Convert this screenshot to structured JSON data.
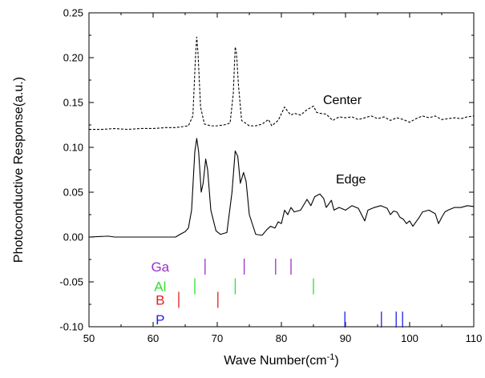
{
  "chart_data": {
    "type": "line",
    "xlabel": "Wave Number(cm",
    "xlabel_sup": "-1",
    "xlabel_tail": ")",
    "ylabel": "Photoconductive Response(a.u.)",
    "xlim": [
      50,
      110
    ],
    "ylim": [
      -0.1,
      0.25
    ],
    "x_ticks": [
      "50",
      "60",
      "70",
      "80",
      "90",
      "100",
      "110"
    ],
    "y_ticks": [
      "-0.10",
      "-0.05",
      "0.00",
      "0.05",
      "0.10",
      "0.15",
      "0.20",
      "0.25"
    ],
    "grid": false,
    "series": [
      {
        "name": "Center",
        "style": "dashed",
        "color": "#000000",
        "points": [
          [
            50,
            0.12
          ],
          [
            52,
            0.12
          ],
          [
            54,
            0.121
          ],
          [
            56,
            0.12
          ],
          [
            58,
            0.121
          ],
          [
            60,
            0.121
          ],
          [
            62,
            0.122
          ],
          [
            63.5,
            0.122
          ],
          [
            64.5,
            0.123
          ],
          [
            65.5,
            0.124
          ],
          [
            66.2,
            0.135
          ],
          [
            66.6,
            0.2
          ],
          [
            66.8,
            0.223
          ],
          [
            67.0,
            0.205
          ],
          [
            67.4,
            0.145
          ],
          [
            68,
            0.126
          ],
          [
            69,
            0.124
          ],
          [
            70,
            0.124
          ],
          [
            71,
            0.125
          ],
          [
            72,
            0.127
          ],
          [
            72.5,
            0.16
          ],
          [
            72.8,
            0.212
          ],
          [
            73.0,
            0.205
          ],
          [
            73.3,
            0.17
          ],
          [
            73.8,
            0.13
          ],
          [
            75,
            0.124
          ],
          [
            76,
            0.124
          ],
          [
            77,
            0.126
          ],
          [
            78,
            0.131
          ],
          [
            78.5,
            0.124
          ],
          [
            79.5,
            0.13
          ],
          [
            80.5,
            0.145
          ],
          [
            81,
            0.14
          ],
          [
            81.5,
            0.136
          ],
          [
            82,
            0.138
          ],
          [
            83,
            0.136
          ],
          [
            84,
            0.142
          ],
          [
            85,
            0.146
          ],
          [
            85.5,
            0.139
          ],
          [
            86,
            0.138
          ],
          [
            87,
            0.137
          ],
          [
            88,
            0.13
          ],
          [
            89,
            0.134
          ],
          [
            90,
            0.133
          ],
          [
            91,
            0.134
          ],
          [
            92,
            0.131
          ],
          [
            93,
            0.133
          ],
          [
            94,
            0.135
          ],
          [
            95,
            0.132
          ],
          [
            96,
            0.134
          ],
          [
            97,
            0.13
          ],
          [
            98,
            0.133
          ],
          [
            99,
            0.131
          ],
          [
            100,
            0.128
          ],
          [
            101,
            0.132
          ],
          [
            102,
            0.135
          ],
          [
            103,
            0.133
          ],
          [
            104,
            0.135
          ],
          [
            105,
            0.131
          ],
          [
            106,
            0.132
          ],
          [
            107,
            0.133
          ],
          [
            108,
            0.132
          ],
          [
            109,
            0.134
          ],
          [
            110,
            0.135
          ]
        ]
      },
      {
        "name": "Edge",
        "style": "solid",
        "color": "#000000",
        "points": [
          [
            50,
            0.0
          ],
          [
            53,
            0.001
          ],
          [
            54,
            0.0
          ],
          [
            56,
            0.0
          ],
          [
            58,
            0.0
          ],
          [
            60,
            0.0
          ],
          [
            62,
            0.0
          ],
          [
            63.5,
            0.0
          ],
          [
            64.2,
            0.003
          ],
          [
            65,
            0.006
          ],
          [
            65.5,
            0.01
          ],
          [
            66,
            0.03
          ],
          [
            66.5,
            0.095
          ],
          [
            66.8,
            0.11
          ],
          [
            67.1,
            0.095
          ],
          [
            67.5,
            0.05
          ],
          [
            67.8,
            0.06
          ],
          [
            68.2,
            0.087
          ],
          [
            68.5,
            0.075
          ],
          [
            69,
            0.03
          ],
          [
            69.8,
            0.007
          ],
          [
            70.5,
            0.003
          ],
          [
            71.5,
            0.005
          ],
          [
            72.3,
            0.05
          ],
          [
            72.8,
            0.096
          ],
          [
            73.2,
            0.09
          ],
          [
            73.6,
            0.06
          ],
          [
            74.1,
            0.072
          ],
          [
            74.5,
            0.062
          ],
          [
            75,
            0.025
          ],
          [
            76,
            0.003
          ],
          [
            77,
            0.002
          ],
          [
            77.7,
            0.008
          ],
          [
            78.3,
            0.012
          ],
          [
            79,
            0.01
          ],
          [
            79.5,
            0.017
          ],
          [
            80,
            0.015
          ],
          [
            80.5,
            0.03
          ],
          [
            81,
            0.025
          ],
          [
            81.5,
            0.033
          ],
          [
            82,
            0.028
          ],
          [
            83,
            0.03
          ],
          [
            84,
            0.042
          ],
          [
            84.6,
            0.035
          ],
          [
            85.2,
            0.045
          ],
          [
            86,
            0.048
          ],
          [
            86.6,
            0.043
          ],
          [
            87,
            0.033
          ],
          [
            87.8,
            0.041
          ],
          [
            88.2,
            0.03
          ],
          [
            89,
            0.033
          ],
          [
            90,
            0.03
          ],
          [
            91,
            0.035
          ],
          [
            92,
            0.032
          ],
          [
            93,
            0.018
          ],
          [
            93.5,
            0.03
          ],
          [
            94.5,
            0.033
          ],
          [
            95.5,
            0.035
          ],
          [
            96.5,
            0.032
          ],
          [
            97,
            0.025
          ],
          [
            97.5,
            0.029
          ],
          [
            98,
            0.028
          ],
          [
            98.5,
            0.022
          ],
          [
            99,
            0.02
          ],
          [
            99.5,
            0.015
          ],
          [
            100,
            0.018
          ],
          [
            100.5,
            0.012
          ],
          [
            101,
            0.017
          ],
          [
            101.5,
            0.022
          ],
          [
            102,
            0.028
          ],
          [
            103,
            0.03
          ],
          [
            104,
            0.026
          ],
          [
            104.5,
            0.015
          ],
          [
            105,
            0.022
          ],
          [
            105.5,
            0.028
          ],
          [
            106,
            0.03
          ],
          [
            107,
            0.033
          ],
          [
            108,
            0.033
          ],
          [
            109,
            0.035
          ],
          [
            110,
            0.034
          ]
        ]
      }
    ],
    "annotations": [
      {
        "text": "Center",
        "x": 86.5,
        "y": 0.148
      },
      {
        "text": "Edge",
        "x": 88.5,
        "y": 0.06
      }
    ],
    "markers": [
      {
        "label": "Ga",
        "color": "#9b30c8",
        "label_x": 61.1,
        "level": -0.033,
        "positions": [
          68.1,
          74.2,
          79.1,
          81.5
        ]
      },
      {
        "label": "Al",
        "color": "#2ee02e",
        "label_x": 61.1,
        "level": -0.055,
        "positions": [
          66.5,
          72.8,
          85.0
        ]
      },
      {
        "label": "B",
        "color": "#e21e1e",
        "label_x": 61.1,
        "level": -0.07,
        "positions": [
          64.0,
          70.1
        ]
      },
      {
        "label": "P",
        "color": "#1e1ee8",
        "label_x": 61.1,
        "level": -0.092,
        "positions": [
          89.9,
          95.6,
          97.9,
          98.9
        ]
      }
    ]
  }
}
